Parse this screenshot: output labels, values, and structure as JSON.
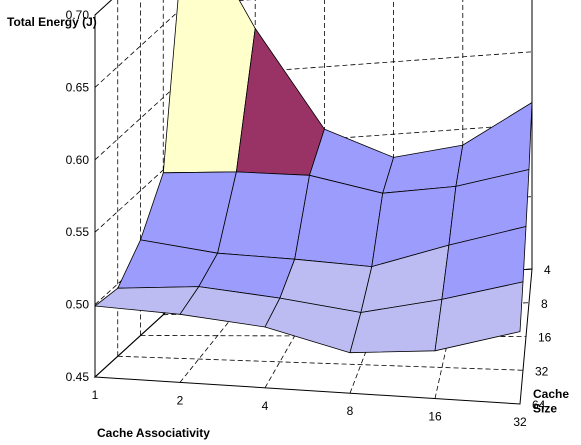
{
  "chart_data": {
    "type": "surface",
    "title": "Total Energy (J)",
    "xlabel": "Cache Associativity",
    "ylabel": "Cache Size",
    "zlabel": "Total Energy (J)",
    "x": [
      "1",
      "2",
      "4",
      "8",
      "16",
      "32"
    ],
    "y": [
      "64",
      "32",
      "16",
      "8",
      "4"
    ],
    "zlim": [
      0.45,
      0.7
    ],
    "z_ticks": [
      "0.45",
      "0.50",
      "0.55",
      "0.60",
      "0.65",
      "0.70"
    ],
    "grid": true,
    "values": [
      [
        0.499,
        0.497,
        0.492,
        0.478,
        0.483,
        0.5
      ],
      [
        0.497,
        0.5,
        0.494,
        0.486,
        0.497,
        0.511
      ],
      [
        0.516,
        0.507,
        0.503,
        0.498,
        0.513,
        0.526
      ],
      [
        0.548,
        0.547,
        0.543,
        0.529,
        0.532,
        0.542
      ],
      [
        0.718,
        0.63,
        0.557,
        0.534,
        0.539,
        0.565
      ]
    ],
    "color_bands": [
      {
        "range": [
          0.45,
          0.5
        ],
        "color": "#bcbcf2"
      },
      {
        "range": [
          0.5,
          0.55
        ],
        "color": "#9c9cfc"
      },
      {
        "range": [
          0.55,
          0.6
        ],
        "color": "#993366"
      },
      {
        "range": [
          0.6,
          0.65
        ],
        "color": "#ffffcc"
      },
      {
        "range": [
          0.65,
          0.7
        ],
        "color": "#ccffff"
      },
      {
        "range": [
          0.7,
          0.75
        ],
        "color": "#660066"
      }
    ]
  }
}
